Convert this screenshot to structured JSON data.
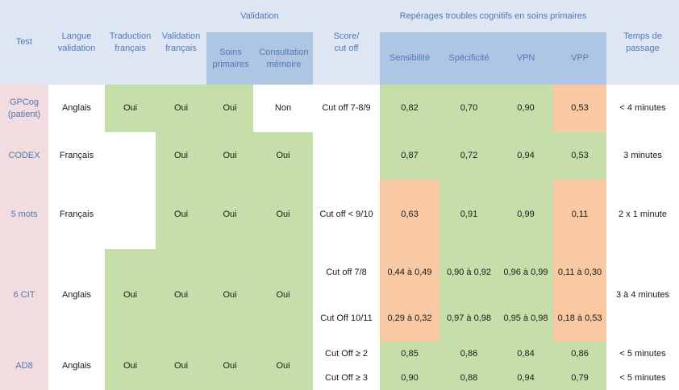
{
  "headers": {
    "test": "Test",
    "langue": "Langue\nvalidation",
    "traduction": "Traduction\nfrançais",
    "validation_fr": "Validation\nfrançais",
    "validation_group": "Validation",
    "soins": "Soins\nprimaires",
    "consult": "Consultation\nmémoire",
    "score": "Score/\ncut off",
    "reperage_group": "Repérages troubles cognitifs en soins primaires",
    "sensibilite": "Sensibilité",
    "specificite": "Spécificité",
    "vpn": "VPN",
    "vpp": "VPP",
    "temps": "Temps de\npassage"
  },
  "rows": {
    "gpcog": {
      "test": "GPCog\n(patient)",
      "langue": "Anglais",
      "traduction": "Oui",
      "validation_fr": "Oui",
      "soins": "Oui",
      "consult": "Non",
      "score": "Cut off 7-8/9",
      "sens": "0,82",
      "spec": "0,70",
      "vpn": "0,90",
      "vpp": "0,53",
      "temps": "< 4 minutes"
    },
    "codex": {
      "test": "CODEX",
      "langue": "Français",
      "validation_fr": "Oui",
      "soins": "Oui",
      "consult": "Oui",
      "sens": "0,87",
      "spec": "0,72",
      "vpn": "0,94",
      "vpp": "0,53",
      "temps": "3 minutes"
    },
    "mots5": {
      "test": "5 mots",
      "langue": "Français",
      "validation_fr": "Oui",
      "soins": "Oui",
      "consult": "Oui",
      "score": "Cut off < 9/10",
      "sens": "0,63",
      "spec": "0,91",
      "vpn": "0,99",
      "vpp": "0,11",
      "temps": "2 x 1 minute"
    },
    "cit6": {
      "test": "6 CIT",
      "langue": "Anglais",
      "traduction": "Oui",
      "validation_fr": "Oui",
      "soins": "Oui",
      "consult": "Oui",
      "temps": "3 à 4 minutes",
      "sub": [
        {
          "score": "Cut off 7/8",
          "sens": "0,44 à 0,49",
          "spec": "0,90 à 0,92",
          "vpn": "0,96 à 0,99",
          "vpp": "0,11 à 0,30"
        },
        {
          "score": "Cut Off 10/11",
          "sens": "0,29 à 0,32",
          "spec": "0,97 à 0,98",
          "vpn": "0,95 à 0,98",
          "vpp": "0,18 à 0,53"
        }
      ]
    },
    "ad8": {
      "test": "AD8",
      "langue": "Anglais",
      "traduction": "Oui",
      "validation_fr": "Oui",
      "soins": "Oui",
      "consult": "Oui",
      "sub": [
        {
          "score": "Cut Off ≥ 2",
          "sens": "0,85",
          "spec": "0,86",
          "vpn": "0,84",
          "vpp": "0,86",
          "temps": "< 5 minutes"
        },
        {
          "score": "Cut Off ≥ 3",
          "sens": "0,90",
          "spec": "0,88",
          "vpn": "0,94",
          "vpp": "0,79",
          "temps": "< 5 minutes"
        }
      ]
    }
  }
}
